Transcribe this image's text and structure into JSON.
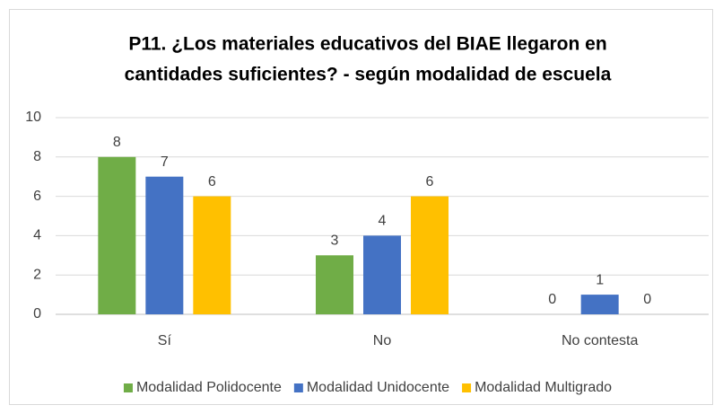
{
  "chart_data": {
    "type": "bar",
    "title": [
      "P11. ¿Los materiales educativos del BIAE llegaron en",
      "cantidades suficientes? - según modalidad de escuela"
    ],
    "categories": [
      "Sí",
      "No",
      "No contesta"
    ],
    "series": [
      {
        "name": "Modalidad Polidocente",
        "color": "#70ad47",
        "values": [
          8,
          3,
          0
        ]
      },
      {
        "name": "Modalidad Unidocente",
        "color": "#4472c4",
        "values": [
          7,
          4,
          1
        ]
      },
      {
        "name": "Modalidad Multigrado",
        "color": "#ffc000",
        "values": [
          6,
          6,
          0
        ]
      }
    ],
    "ylim": [
      0,
      10
    ],
    "yticks": [
      0,
      2,
      4,
      6,
      8,
      10
    ],
    "grid": true,
    "legend": "bottom"
  }
}
